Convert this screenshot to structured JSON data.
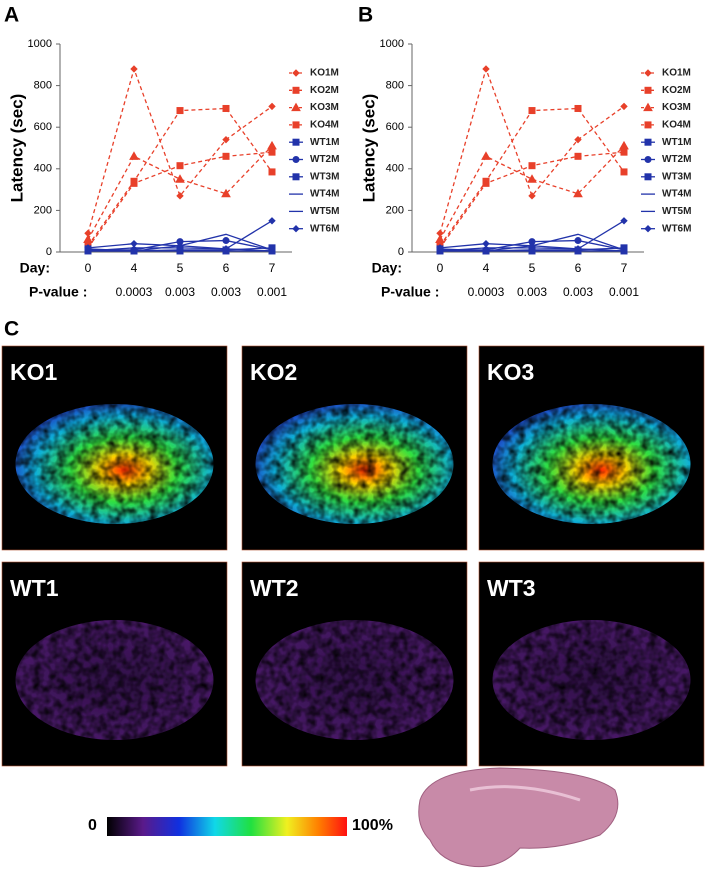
{
  "panels": [
    "A",
    "B",
    "C"
  ],
  "chart_data": [
    {
      "type": "line",
      "ylabel": "Latency (sec)",
      "xlabel": "Day:",
      "pvalue_label": "P-value :",
      "categories": [
        "0",
        "4",
        "5",
        "6",
        "7"
      ],
      "pvalues": [
        null,
        "0.0003",
        "0.003",
        "0.003",
        "0.001"
      ],
      "ylim": [
        0,
        1000
      ],
      "yticks": [
        0,
        200,
        400,
        600,
        800,
        1000
      ],
      "series": [
        {
          "name": "KO1M",
          "color": "#e8402a",
          "dashed": true,
          "marker": "diamond",
          "values": [
            90,
            880,
            270,
            540,
            700
          ]
        },
        {
          "name": "KO2M",
          "color": "#e8402a",
          "dashed": true,
          "marker": "square",
          "values": [
            30,
            340,
            680,
            690,
            385
          ]
        },
        {
          "name": "KO3M",
          "color": "#e8402a",
          "dashed": true,
          "marker": "triangle",
          "values": [
            60,
            460,
            350,
            280,
            510
          ]
        },
        {
          "name": "KO4M",
          "color": "#e8402a",
          "dashed": true,
          "marker": "square",
          "values": [
            20,
            330,
            415,
            460,
            480
          ]
        },
        {
          "name": "WT1M",
          "color": "#2233aa",
          "dashed": false,
          "marker": "square",
          "values": [
            5,
            5,
            5,
            5,
            5
          ]
        },
        {
          "name": "WT2M",
          "color": "#2233aa",
          "dashed": false,
          "marker": "circle",
          "values": [
            10,
            10,
            50,
            55,
            10
          ]
        },
        {
          "name": "WT3M",
          "color": "#2233aa",
          "dashed": false,
          "marker": "square",
          "values": [
            15,
            5,
            10,
            10,
            20
          ]
        },
        {
          "name": "WT4M",
          "color": "#2233aa",
          "dashed": false,
          "marker": "none",
          "values": [
            5,
            20,
            20,
            15,
            5
          ]
        },
        {
          "name": "WT5M",
          "color": "#2233aa",
          "dashed": false,
          "marker": "none",
          "values": [
            5,
            5,
            30,
            85,
            10
          ]
        },
        {
          "name": "WT6M",
          "color": "#2233aa",
          "dashed": false,
          "marker": "diamond",
          "values": [
            20,
            40,
            30,
            15,
            150
          ]
        }
      ]
    },
    {
      "type": "line",
      "ylabel": "Latency (sec)",
      "xlabel": "Day:",
      "pvalue_label": "P-value :",
      "categories": [
        "0",
        "4",
        "5",
        "6",
        "7"
      ],
      "pvalues": [
        null,
        "0.0003",
        "0.003",
        "0.003",
        "0.001"
      ],
      "ylim": [
        0,
        1000
      ],
      "yticks": [
        0,
        200,
        400,
        600,
        800,
        1000
      ],
      "series": [
        {
          "name": "KO1M",
          "color": "#e8402a",
          "dashed": true,
          "marker": "diamond",
          "values": [
            90,
            880,
            270,
            540,
            700
          ]
        },
        {
          "name": "KO2M",
          "color": "#e8402a",
          "dashed": true,
          "marker": "square",
          "values": [
            30,
            340,
            680,
            690,
            385
          ]
        },
        {
          "name": "KO3M",
          "color": "#e8402a",
          "dashed": true,
          "marker": "triangle",
          "values": [
            60,
            460,
            350,
            280,
            510
          ]
        },
        {
          "name": "KO4M",
          "color": "#e8402a",
          "dashed": true,
          "marker": "square",
          "values": [
            20,
            330,
            415,
            460,
            480
          ]
        },
        {
          "name": "WT1M",
          "color": "#2233aa",
          "dashed": false,
          "marker": "square",
          "values": [
            5,
            5,
            5,
            5,
            5
          ]
        },
        {
          "name": "WT2M",
          "color": "#2233aa",
          "dashed": false,
          "marker": "circle",
          "values": [
            10,
            10,
            50,
            55,
            10
          ]
        },
        {
          "name": "WT3M",
          "color": "#2233aa",
          "dashed": false,
          "marker": "square",
          "values": [
            15,
            5,
            10,
            10,
            20
          ]
        },
        {
          "name": "WT4M",
          "color": "#2233aa",
          "dashed": false,
          "marker": "none",
          "values": [
            5,
            20,
            20,
            15,
            5
          ]
        },
        {
          "name": "WT5M",
          "color": "#2233aa",
          "dashed": false,
          "marker": "none",
          "values": [
            5,
            5,
            30,
            85,
            10
          ]
        },
        {
          "name": "WT6M",
          "color": "#2233aa",
          "dashed": false,
          "marker": "diamond",
          "values": [
            20,
            40,
            30,
            15,
            150
          ]
        }
      ]
    }
  ],
  "images": {
    "labels": [
      "KO1",
      "KO2",
      "KO3",
      "WT1",
      "WT2",
      "WT3"
    ]
  },
  "colorbar": {
    "min_label": "0",
    "max_label": "100%"
  }
}
